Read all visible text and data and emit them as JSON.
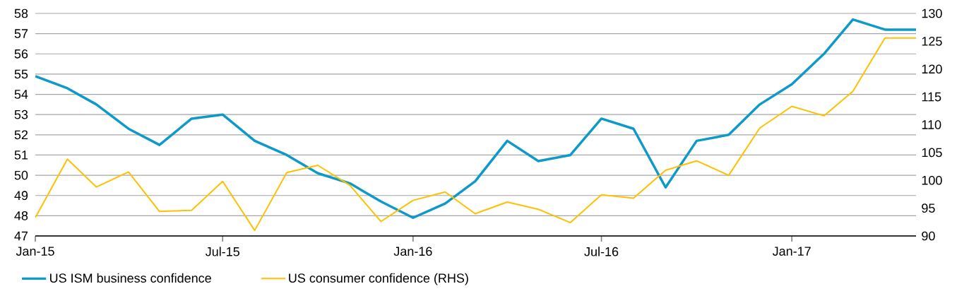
{
  "chart_data": {
    "type": "line",
    "x": [
      "2015-01",
      "2015-02",
      "2015-03",
      "2015-04",
      "2015-05",
      "2015-06",
      "2015-07",
      "2015-08",
      "2015-09",
      "2015-10",
      "2015-11",
      "2015-12",
      "2016-01",
      "2016-02",
      "2016-03",
      "2016-04",
      "2016-05",
      "2016-06",
      "2016-07",
      "2016-08",
      "2016-09",
      "2016-10",
      "2016-11",
      "2016-12",
      "2017-01",
      "2017-02",
      "2017-03",
      "2017-04",
      "2017-05"
    ],
    "xlim": [
      "2015-01",
      "2017-05"
    ],
    "xticks": [
      {
        "value": "2015-01",
        "label": "Jan-15"
      },
      {
        "value": "2015-07",
        "label": "Jul-15"
      },
      {
        "value": "2016-01",
        "label": "Jan-16"
      },
      {
        "value": "2016-07",
        "label": "Jul-16"
      },
      {
        "value": "2017-01",
        "label": "Jan-17"
      }
    ],
    "ylim": [
      47,
      58
    ],
    "yticks": [
      47,
      48,
      49,
      50,
      51,
      52,
      53,
      54,
      55,
      56,
      57,
      58
    ],
    "y2lim": [
      90,
      130
    ],
    "y2ticks": [
      90,
      95,
      100,
      105,
      110,
      115,
      120,
      125,
      130
    ],
    "grid": "y",
    "legend": "bottom",
    "series": [
      {
        "name": "US ISM business confidence",
        "color": "#0e9ac8",
        "axis": "y",
        "values": [
          54.9,
          54.3,
          53.5,
          52.3,
          51.5,
          52.8,
          53.0,
          51.7,
          51.0,
          50.1,
          49.6,
          48.7,
          47.9,
          48.6,
          49.7,
          51.7,
          50.7,
          51.0,
          52.8,
          52.3,
          49.4,
          51.7,
          52.0,
          53.5,
          54.5,
          56.0,
          57.7,
          57.2,
          57.2
        ]
      },
      {
        "name": "US consumer confidence (RHS)",
        "color": "#ffc000",
        "axis": "y2",
        "values": [
          93.3,
          103.8,
          98.8,
          101.5,
          94.4,
          94.6,
          99.8,
          91.0,
          101.4,
          102.7,
          99.1,
          92.6,
          96.4,
          97.9,
          94.0,
          96.1,
          94.8,
          92.4,
          97.4,
          96.8,
          101.8,
          103.5,
          100.9,
          109.4,
          113.3,
          111.6,
          116.0,
          125.6,
          125.6
        ]
      }
    ]
  }
}
